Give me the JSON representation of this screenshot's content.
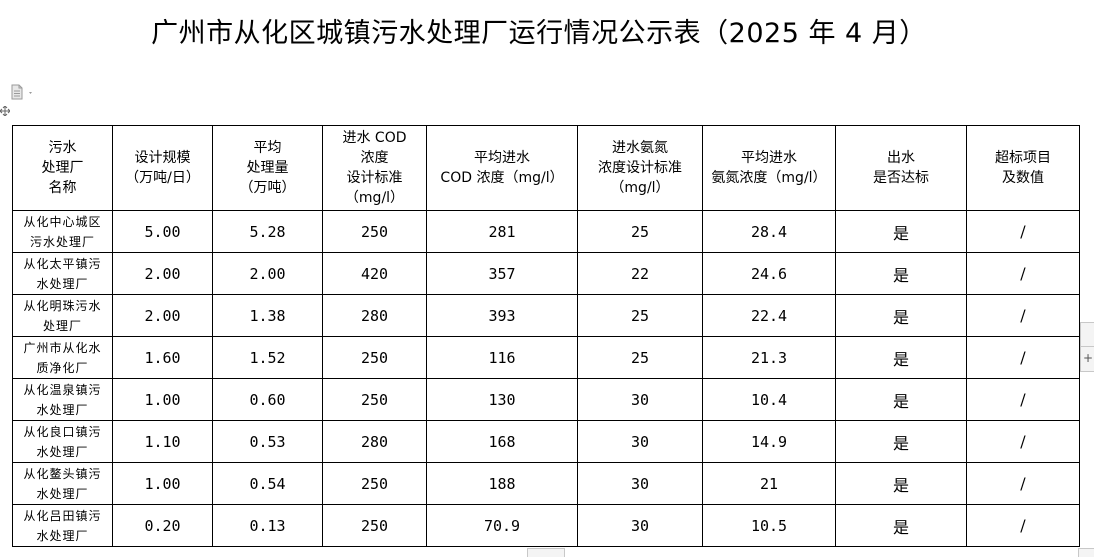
{
  "title": "广州市从化区城镇污水处理厂运行情况公示表（2025 年 4 月）",
  "table": {
    "headers": [
      [
        "污水",
        "处理厂",
        "名称"
      ],
      [
        "设计规模",
        "（万吨/日）"
      ],
      [
        "平均",
        "处理量",
        "（万吨）"
      ],
      [
        "进水 COD",
        "浓度",
        "设计标准",
        "（mg/l）"
      ],
      [
        "平均进水",
        "COD 浓度（mg/l）"
      ],
      [
        "进水氨氮",
        "浓度设计标准",
        "（mg/l）"
      ],
      [
        "平均进水",
        "氨氮浓度（mg/l）"
      ],
      [
        "出水",
        "是否达标"
      ],
      [
        "超标项目",
        "及数值"
      ]
    ],
    "rows": [
      {
        "name": [
          "从化中心城区",
          "污水处理厂"
        ],
        "scale": "5.00",
        "avg": "5.28",
        "cod_std": "250",
        "cod_avg": "281",
        "nh_std": "25",
        "nh_avg": "28.4",
        "ok": "是",
        "over": "/"
      },
      {
        "name": [
          "从化太平镇污",
          "水处理厂"
        ],
        "scale": "2.00",
        "avg": "2.00",
        "cod_std": "420",
        "cod_avg": "357",
        "nh_std": "22",
        "nh_avg": "24.6",
        "ok": "是",
        "over": "/"
      },
      {
        "name": [
          "从化明珠污水",
          "处理厂"
        ],
        "scale": "2.00",
        "avg": "1.38",
        "cod_std": "280",
        "cod_avg": "393",
        "nh_std": "25",
        "nh_avg": "22.4",
        "ok": "是",
        "over": "/"
      },
      {
        "name": [
          "广州市从化水",
          "质净化厂"
        ],
        "scale": "1.60",
        "avg": "1.52",
        "cod_std": "250",
        "cod_avg": "116",
        "nh_std": "25",
        "nh_avg": "21.3",
        "ok": "是",
        "over": "/"
      },
      {
        "name": [
          "从化温泉镇污",
          "水处理厂"
        ],
        "scale": "1.00",
        "avg": "0.60",
        "cod_std": "250",
        "cod_avg": "130",
        "nh_std": "30",
        "nh_avg": "10.4",
        "ok": "是",
        "over": "/"
      },
      {
        "name": [
          "从化良口镇污",
          "水处理厂"
        ],
        "scale": "1.10",
        "avg": "0.53",
        "cod_std": "280",
        "cod_avg": "168",
        "nh_std": "30",
        "nh_avg": "14.9",
        "ok": "是",
        "over": "/"
      },
      {
        "name": [
          "从化鳌头镇污",
          "水处理厂"
        ],
        "scale": "1.00",
        "avg": "0.54",
        "cod_std": "250",
        "cod_avg": "188",
        "nh_std": "30",
        "nh_avg": "21",
        "ok": "是",
        "over": "/"
      },
      {
        "name": [
          "从化吕田镇污",
          "水处理厂"
        ],
        "scale": "0.20",
        "avg": "0.13",
        "cod_std": "250",
        "cod_avg": "70.9",
        "nh_std": "30",
        "nh_avg": "10.5",
        "ok": "是",
        "over": "/"
      }
    ]
  },
  "ui": {
    "paste_icon": "document-paste-icon",
    "move_icon": "table-move-handle-icon",
    "right_tab_label": "+",
    "line_color": "#000000",
    "chrome_color": "#c8c8c8"
  }
}
